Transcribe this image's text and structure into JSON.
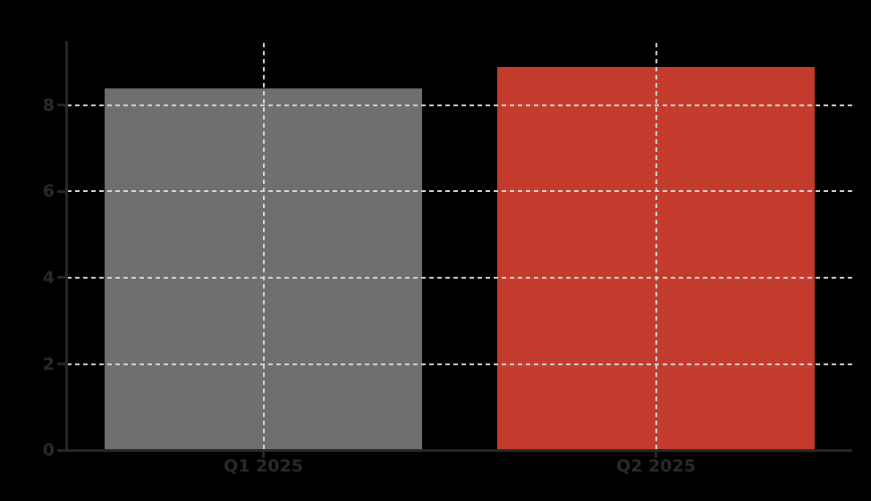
{
  "figure": {
    "background_color": "#000000",
    "title": ""
  },
  "chart_data": {
    "type": "bar",
    "title": "",
    "xlabel": "",
    "ylabel": "",
    "categories": [
      "Q1 2025",
      "Q2 2025"
    ],
    "values": [
      8.4,
      8.9
    ],
    "bar_colors": [
      "#6f6f6f",
      "#c23b2c"
    ],
    "bar_width_fraction": 0.81,
    "ylim": [
      0,
      9.45
    ],
    "yticks": [
      0,
      2,
      4,
      6,
      8
    ],
    "ytick_labels": [
      "0",
      "2",
      "4",
      "6",
      "8"
    ],
    "grid": {
      "horizontal": true,
      "vertical": true,
      "style": "dashed",
      "color": "#d8d8d8",
      "drawn_above_bars": true
    },
    "axis_color": "#262626",
    "tick_label_color": "#2a2a2a",
    "legend": "none"
  }
}
